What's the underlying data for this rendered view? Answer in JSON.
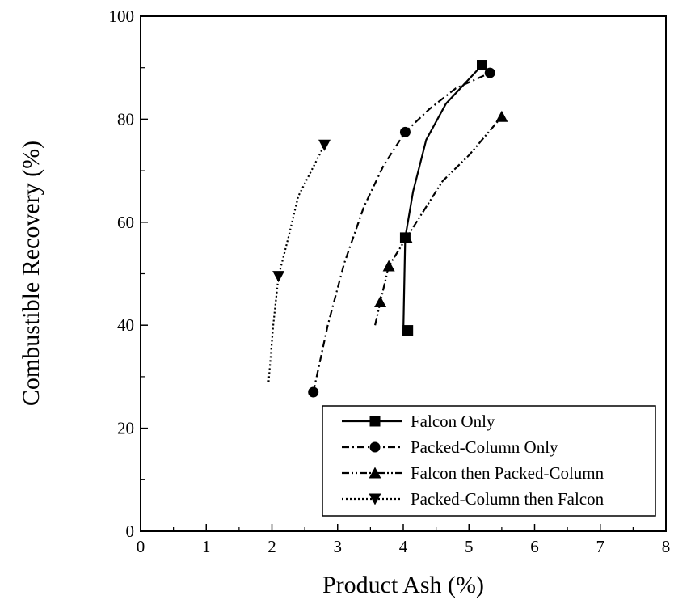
{
  "chart_data": {
    "type": "line",
    "title": "",
    "xlabel": "Product Ash (%)",
    "ylabel": "Combustible Recovery (%)",
    "xlim": [
      0,
      8
    ],
    "ylim": [
      0,
      100
    ],
    "xticks": [
      0,
      1,
      2,
      3,
      4,
      5,
      6,
      7,
      8
    ],
    "yticks": [
      0,
      20,
      40,
      60,
      80,
      100
    ],
    "grid": false,
    "legend_position": "bottom-right",
    "series": [
      {
        "name": "Falcon Only",
        "marker": "square",
        "dash": "solid",
        "points": [
          [
            4.07,
            39
          ],
          [
            4.03,
            57
          ],
          [
            5.2,
            90.5
          ]
        ],
        "curve": [
          [
            4.0,
            38
          ],
          [
            4.03,
            57
          ],
          [
            4.15,
            66
          ],
          [
            4.35,
            76
          ],
          [
            4.65,
            83
          ],
          [
            5.2,
            90.5
          ]
        ]
      },
      {
        "name": "Packed-Column Only",
        "marker": "circle",
        "dash": "dashdot",
        "points": [
          [
            2.63,
            27
          ],
          [
            4.03,
            77.5
          ],
          [
            5.32,
            89
          ]
        ],
        "curve": [
          [
            2.63,
            27
          ],
          [
            2.85,
            40
          ],
          [
            3.1,
            52
          ],
          [
            3.4,
            63
          ],
          [
            3.7,
            71
          ],
          [
            4.03,
            77.5
          ],
          [
            4.4,
            82
          ],
          [
            4.8,
            86
          ],
          [
            5.32,
            89
          ]
        ]
      },
      {
        "name": "Falcon then Packed-Column",
        "marker": "triangle-up",
        "dash": "dashdotdot",
        "points": [
          [
            3.65,
            44.5
          ],
          [
            3.78,
            51.5
          ],
          [
            4.05,
            57
          ],
          [
            5.5,
            80.5
          ]
        ],
        "curve": [
          [
            3.57,
            40
          ],
          [
            3.65,
            44.5
          ],
          [
            3.78,
            51.5
          ],
          [
            4.05,
            57
          ],
          [
            4.3,
            62
          ],
          [
            4.6,
            68
          ],
          [
            5.0,
            73
          ],
          [
            5.5,
            80.5
          ]
        ]
      },
      {
        "name": "Packed-Column then Falcon",
        "marker": "triangle-down",
        "dash": "dotted",
        "points": [
          [
            2.1,
            49.5
          ],
          [
            2.8,
            75
          ]
        ],
        "curve": [
          [
            1.95,
            29
          ],
          [
            2.02,
            40
          ],
          [
            2.1,
            49.5
          ],
          [
            2.25,
            57
          ],
          [
            2.4,
            65
          ],
          [
            2.6,
            70
          ],
          [
            2.8,
            75
          ]
        ]
      }
    ]
  }
}
